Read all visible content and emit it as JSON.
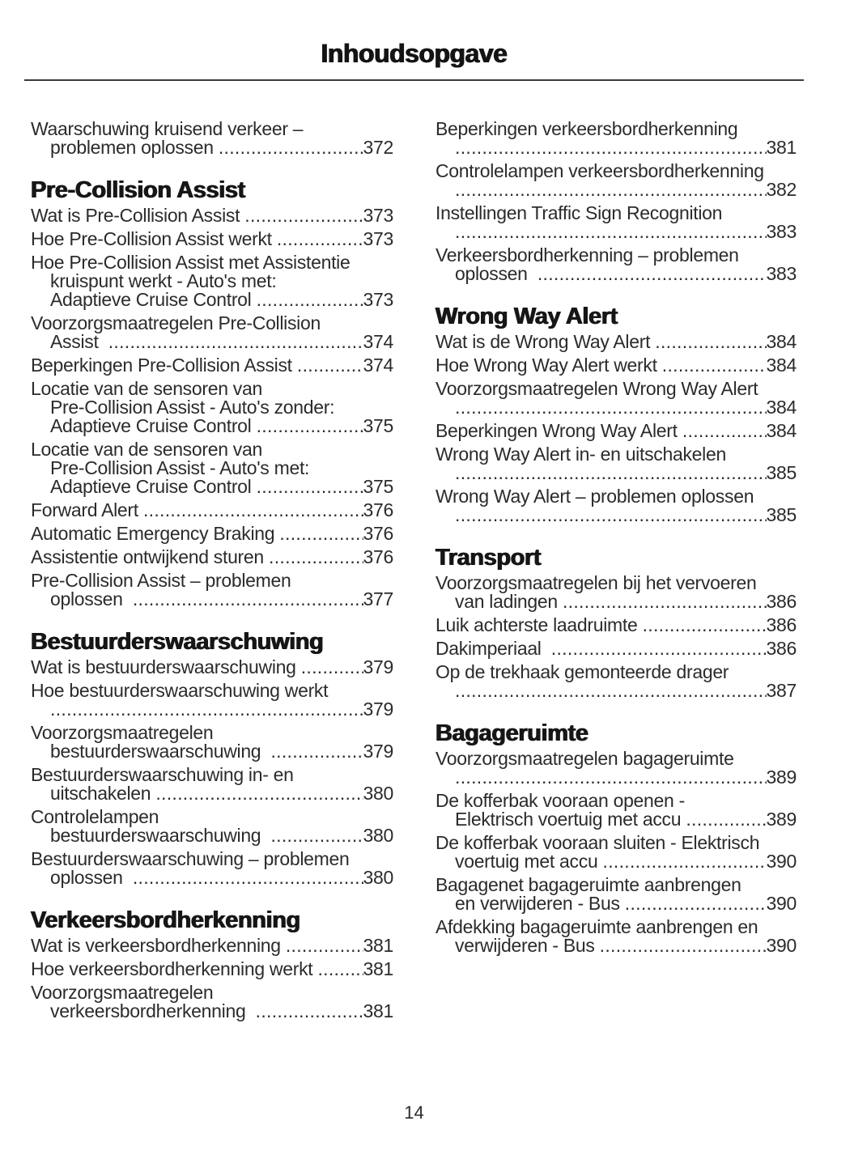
{
  "page": {
    "title": "Inhoudsopgave",
    "footer_page_number": "14"
  },
  "colors": {
    "text": "#2b2b2b",
    "heading": "#161616",
    "divider": "#3a3a3a",
    "background": "#ffffff"
  },
  "columns": {
    "left": [
      {
        "heading": null,
        "entries": [
          {
            "lines": [
              "Waarschuwing kruisend verkeer –",
              "problemen oplossen "
            ],
            "page": "372"
          }
        ]
      },
      {
        "heading": "Pre-Collision Assist",
        "entries": [
          {
            "lines": [
              "Wat is Pre-Collision Assist "
            ],
            "page": "373"
          },
          {
            "lines": [
              "Hoe Pre-Collision Assist werkt "
            ],
            "page": "373"
          },
          {
            "lines": [
              "Hoe Pre-Collision Assist met Assistentie",
              "kruispunt werkt - Auto's met:",
              "Adaptieve Cruise Control "
            ],
            "page": "373"
          },
          {
            "lines": [
              "Voorzorgsmaatregelen Pre-Collision",
              "Assist  "
            ],
            "page": "374"
          },
          {
            "lines": [
              "Beperkingen Pre-Collision Assist "
            ],
            "page": "374"
          },
          {
            "lines": [
              "Locatie van de sensoren van",
              "Pre-Collision Assist - Auto's zonder:",
              "Adaptieve Cruise Control "
            ],
            "page": "375"
          },
          {
            "lines": [
              "Locatie van de sensoren van",
              "Pre-Collision Assist - Auto's met:",
              "Adaptieve Cruise Control "
            ],
            "page": "375"
          },
          {
            "lines": [
              "Forward Alert "
            ],
            "page": "376"
          },
          {
            "lines": [
              "Automatic Emergency Braking "
            ],
            "page": "376"
          },
          {
            "lines": [
              "Assistentie ontwijkend sturen "
            ],
            "page": "376"
          },
          {
            "lines": [
              "Pre-Collision Assist – problemen",
              "oplossen  "
            ],
            "page": "377"
          }
        ]
      },
      {
        "heading": "Bestuurderswaarschuwing",
        "entries": [
          {
            "lines": [
              "Wat is bestuurderswaarschuwing "
            ],
            "page": "379"
          },
          {
            "lines": [
              "Hoe bestuurderswaarschuwing werkt",
              ""
            ],
            "page": "379"
          },
          {
            "lines": [
              "Voorzorgsmaatregelen",
              "bestuurderswaarschuwing  "
            ],
            "page": "379"
          },
          {
            "lines": [
              "Bestuurderswaarschuwing in- en",
              "uitschakelen "
            ],
            "page": "380"
          },
          {
            "lines": [
              "Controlelampen",
              "bestuurderswaarschuwing  "
            ],
            "page": "380"
          },
          {
            "lines": [
              "Bestuurderswaarschuwing – problemen",
              "oplossen  "
            ],
            "page": "380"
          }
        ]
      },
      {
        "heading": "Verkeersbordherkenning",
        "entries": [
          {
            "lines": [
              "Wat is verkeersbordherkenning "
            ],
            "page": "381"
          },
          {
            "lines": [
              "Hoe verkeersbordherkenning werkt "
            ],
            "page": "381"
          },
          {
            "lines": [
              "Voorzorgsmaatregelen",
              "verkeersbordherkenning  "
            ],
            "page": "381"
          }
        ]
      }
    ],
    "right": [
      {
        "heading": null,
        "entries": [
          {
            "lines": [
              "Beperkingen verkeersbordherkenning",
              ""
            ],
            "page": "381"
          },
          {
            "lines": [
              "Controlelampen verkeersbordherkenning",
              ""
            ],
            "page": "382"
          },
          {
            "lines": [
              "Instellingen Traffic Sign Recognition",
              ""
            ],
            "page": "383"
          },
          {
            "lines": [
              "Verkeersbordherkenning – problemen",
              "oplossen  "
            ],
            "page": "383"
          }
        ]
      },
      {
        "heading": "Wrong Way Alert",
        "entries": [
          {
            "lines": [
              "Wat is de Wrong Way Alert "
            ],
            "page": "384"
          },
          {
            "lines": [
              "Hoe Wrong Way Alert werkt "
            ],
            "page": "384"
          },
          {
            "lines": [
              "Voorzorgsmaatregelen Wrong Way Alert",
              ""
            ],
            "page": "384"
          },
          {
            "lines": [
              "Beperkingen Wrong Way Alert "
            ],
            "page": "384"
          },
          {
            "lines": [
              "Wrong Way Alert in- en uitschakelen",
              ""
            ],
            "page": "385"
          },
          {
            "lines": [
              "Wrong Way Alert – problemen oplossen",
              ""
            ],
            "page": "385"
          }
        ]
      },
      {
        "heading": "Transport",
        "entries": [
          {
            "lines": [
              "Voorzorgsmaatregelen bij het vervoeren",
              "van ladingen "
            ],
            "page": "386"
          },
          {
            "lines": [
              "Luik achterste laadruimte "
            ],
            "page": "386"
          },
          {
            "lines": [
              "Dakimperiaal  "
            ],
            "page": "386"
          },
          {
            "lines": [
              "Op de trekhaak gemonteerde drager",
              ""
            ],
            "page": "387"
          }
        ]
      },
      {
        "heading": "Bagageruimte",
        "entries": [
          {
            "lines": [
              "Voorzorgsmaatregelen bagageruimte",
              ""
            ],
            "page": "389"
          },
          {
            "lines": [
              "De kofferbak vooraan openen -",
              "Elektrisch voertuig met accu "
            ],
            "page": "389"
          },
          {
            "lines": [
              "De kofferbak vooraan sluiten - Elektrisch",
              "voertuig met accu "
            ],
            "page": "390"
          },
          {
            "lines": [
              "Bagagenet bagageruimte aanbrengen",
              "en verwijderen - Bus "
            ],
            "page": "390"
          },
          {
            "lines": [
              "Afdekking bagageruimte aanbrengen en",
              "verwijderen - Bus "
            ],
            "page": "390"
          }
        ]
      }
    ]
  }
}
